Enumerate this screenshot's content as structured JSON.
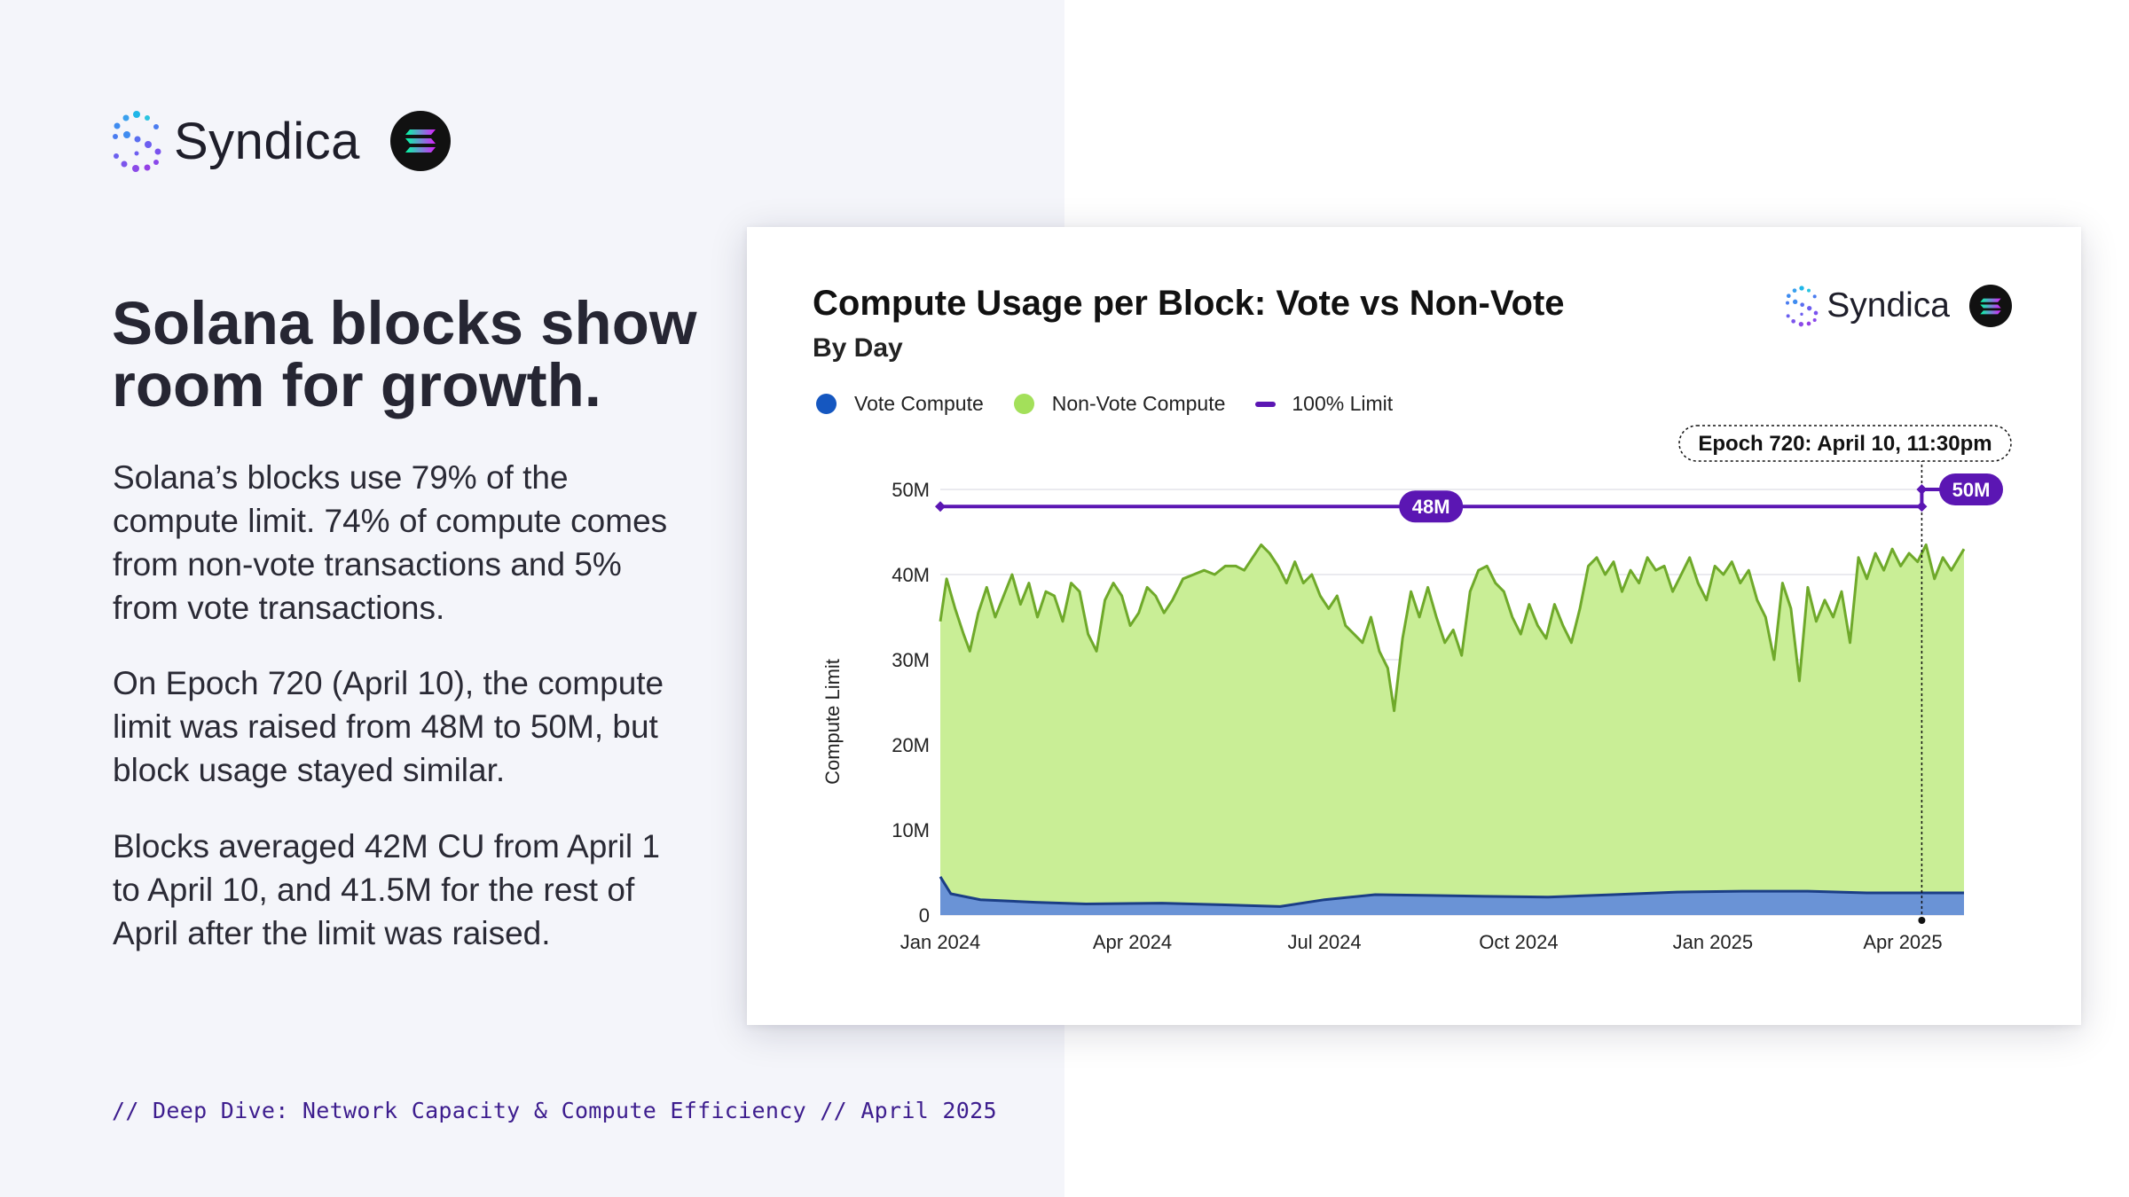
{
  "brand": {
    "name": "Syndica"
  },
  "slide": {
    "headline_line1": "Solana blocks show",
    "headline_line2": "room for growth.",
    "paragraphs": [
      "Solana’s blocks use 79% of the compute limit. 74% of compute comes from non-vote transactions and 5% from vote transactions.",
      "On Epoch 720 (April 10), the compute limit was raised from 48M to 50M, but block usage stayed similar.",
      "Blocks averaged 42M CU from April 1 to April 10, and 41.5M for the rest of April after the limit was raised."
    ],
    "footer": "// Deep Dive: Network Capacity & Compute Efficiency // April 2025"
  },
  "colors": {
    "vote": "#1f5fbf",
    "vote_fill": "#6a93d6",
    "nonvote": "#a3e05a",
    "nonvote_line": "#6fa92a",
    "nonvote_fill": "#c9ee96",
    "limit": "#5b16b3",
    "accent": "#3d1d8e"
  },
  "icons": {
    "brand_logo": "syndica-dots-s-icon",
    "solana_badge": "solana-icon"
  },
  "chart_data": {
    "type": "area",
    "title": "Compute Usage per Block: Vote vs Non-Vote",
    "subtitle": "By Day",
    "ylabel": "Compute Limit",
    "ylim": [
      0,
      50
    ],
    "yticks": [
      "50M",
      "40M",
      "30M",
      "20M",
      "10M",
      "0"
    ],
    "xticks": [
      "Jan 2024",
      "Apr 2024",
      "Jul 2024",
      "Oct 2024",
      "Jan 2025",
      "Apr 2025"
    ],
    "x_start": "2024-01-01",
    "x_end": "2025-04-30",
    "legend": [
      "Vote Compute",
      "Non-Vote Compute",
      "100% Limit"
    ],
    "legend_position": "top-left",
    "grid": true,
    "series": [
      {
        "name": "Non-Vote Compute",
        "points": [
          [
            "2024-01-01",
            34.5
          ],
          [
            "2024-01-04",
            39.5
          ],
          [
            "2024-01-08",
            36
          ],
          [
            "2024-01-12",
            33
          ],
          [
            "2024-01-15",
            31
          ],
          [
            "2024-01-19",
            35.5
          ],
          [
            "2024-01-23",
            38.5
          ],
          [
            "2024-01-27",
            35
          ],
          [
            "2024-01-31",
            37.5
          ],
          [
            "2024-02-04",
            40
          ],
          [
            "2024-02-08",
            36.5
          ],
          [
            "2024-02-12",
            39
          ],
          [
            "2024-02-16",
            35
          ],
          [
            "2024-02-20",
            38
          ],
          [
            "2024-02-24",
            37.5
          ],
          [
            "2024-02-28",
            34.5
          ],
          [
            "2024-03-03",
            39
          ],
          [
            "2024-03-07",
            38
          ],
          [
            "2024-03-11",
            33
          ],
          [
            "2024-03-15",
            31
          ],
          [
            "2024-03-19",
            37
          ],
          [
            "2024-03-23",
            39
          ],
          [
            "2024-03-27",
            37.5
          ],
          [
            "2024-03-31",
            34
          ],
          [
            "2024-04-04",
            35.5
          ],
          [
            "2024-04-08",
            38.5
          ],
          [
            "2024-04-12",
            37.5
          ],
          [
            "2024-04-16",
            35.5
          ],
          [
            "2024-04-20",
            37
          ],
          [
            "2024-04-25",
            39.5
          ],
          [
            "2024-04-30",
            40
          ],
          [
            "2024-05-05",
            40.5
          ],
          [
            "2024-05-10",
            40
          ],
          [
            "2024-05-15",
            41
          ],
          [
            "2024-05-20",
            41
          ],
          [
            "2024-05-24",
            40.5
          ],
          [
            "2024-05-28",
            42
          ],
          [
            "2024-06-01",
            43.5
          ],
          [
            "2024-06-05",
            42.5
          ],
          [
            "2024-06-09",
            41
          ],
          [
            "2024-06-13",
            39
          ],
          [
            "2024-06-17",
            41.5
          ],
          [
            "2024-06-21",
            39
          ],
          [
            "2024-06-25",
            40
          ],
          [
            "2024-06-29",
            37.5
          ],
          [
            "2024-07-03",
            36
          ],
          [
            "2024-07-07",
            37.5
          ],
          [
            "2024-07-11",
            34
          ],
          [
            "2024-07-15",
            33
          ],
          [
            "2024-07-19",
            32
          ],
          [
            "2024-07-23",
            35
          ],
          [
            "2024-07-27",
            31
          ],
          [
            "2024-07-31",
            29
          ],
          [
            "2024-08-03",
            24
          ],
          [
            "2024-08-07",
            32.5
          ],
          [
            "2024-08-11",
            38
          ],
          [
            "2024-08-15",
            35
          ],
          [
            "2024-08-19",
            38.5
          ],
          [
            "2024-08-23",
            35
          ],
          [
            "2024-08-27",
            32
          ],
          [
            "2024-08-31",
            33.5
          ],
          [
            "2024-09-04",
            30.5
          ],
          [
            "2024-09-08",
            38
          ],
          [
            "2024-09-12",
            40.5
          ],
          [
            "2024-09-16",
            41
          ],
          [
            "2024-09-20",
            39
          ],
          [
            "2024-09-24",
            38
          ],
          [
            "2024-09-28",
            35
          ],
          [
            "2024-10-02",
            33
          ],
          [
            "2024-10-06",
            36.5
          ],
          [
            "2024-10-10",
            34
          ],
          [
            "2024-10-14",
            32.5
          ],
          [
            "2024-10-18",
            36.5
          ],
          [
            "2024-10-22",
            34
          ],
          [
            "2024-10-26",
            32
          ],
          [
            "2024-10-30",
            36
          ],
          [
            "2024-11-03",
            41
          ],
          [
            "2024-11-07",
            42
          ],
          [
            "2024-11-11",
            40
          ],
          [
            "2024-11-15",
            41.5
          ],
          [
            "2024-11-19",
            38
          ],
          [
            "2024-11-23",
            40.5
          ],
          [
            "2024-11-27",
            39
          ],
          [
            "2024-12-01",
            42
          ],
          [
            "2024-12-05",
            40.5
          ],
          [
            "2024-12-09",
            41
          ],
          [
            "2024-12-13",
            38
          ],
          [
            "2024-12-17",
            40
          ],
          [
            "2024-12-21",
            42
          ],
          [
            "2024-12-25",
            39
          ],
          [
            "2024-12-29",
            37
          ],
          [
            "2025-01-02",
            41
          ],
          [
            "2025-01-06",
            40
          ],
          [
            "2025-01-10",
            41.5
          ],
          [
            "2025-01-14",
            39
          ],
          [
            "2025-01-18",
            40.5
          ],
          [
            "2025-01-22",
            37
          ],
          [
            "2025-01-26",
            35
          ],
          [
            "2025-01-30",
            30
          ],
          [
            "2025-02-03",
            39
          ],
          [
            "2025-02-07",
            36
          ],
          [
            "2025-02-11",
            27.5
          ],
          [
            "2025-02-15",
            38.5
          ],
          [
            "2025-02-19",
            34.5
          ],
          [
            "2025-02-23",
            37
          ],
          [
            "2025-02-27",
            35
          ],
          [
            "2025-03-03",
            38
          ],
          [
            "2025-03-07",
            32
          ],
          [
            "2025-03-11",
            42
          ],
          [
            "2025-03-15",
            39.5
          ],
          [
            "2025-03-19",
            42.5
          ],
          [
            "2025-03-23",
            40.5
          ],
          [
            "2025-03-27",
            43
          ],
          [
            "2025-03-31",
            41
          ],
          [
            "2025-04-04",
            42.5
          ],
          [
            "2025-04-08",
            41.5
          ],
          [
            "2025-04-12",
            43.5
          ],
          [
            "2025-04-16",
            39.5
          ],
          [
            "2025-04-20",
            42
          ],
          [
            "2025-04-24",
            40.5
          ],
          [
            "2025-04-30",
            43
          ]
        ]
      },
      {
        "name": "Vote Compute",
        "points": [
          [
            "2024-01-01",
            4.5
          ],
          [
            "2024-01-06",
            2.5
          ],
          [
            "2024-01-20",
            1.8
          ],
          [
            "2024-02-15",
            1.5
          ],
          [
            "2024-03-10",
            1.3
          ],
          [
            "2024-04-15",
            1.4
          ],
          [
            "2024-05-15",
            1.2
          ],
          [
            "2024-06-10",
            1.0
          ],
          [
            "2024-07-01",
            1.8
          ],
          [
            "2024-07-25",
            2.4
          ],
          [
            "2024-08-20",
            2.3
          ],
          [
            "2024-09-15",
            2.2
          ],
          [
            "2024-10-15",
            2.1
          ],
          [
            "2024-11-15",
            2.4
          ],
          [
            "2024-12-15",
            2.7
          ],
          [
            "2025-01-15",
            2.8
          ],
          [
            "2025-02-15",
            2.8
          ],
          [
            "2025-03-15",
            2.6
          ],
          [
            "2025-04-30",
            2.6
          ]
        ]
      }
    ],
    "limit_series": {
      "name": "100% Limit",
      "points": [
        [
          "2024-01-01",
          48
        ],
        [
          "2025-04-10",
          48
        ],
        [
          "2025-04-10",
          50
        ],
        [
          "2025-04-30",
          50
        ]
      ],
      "labels": [
        "48M",
        "50M"
      ]
    },
    "annotation": {
      "date": "2025-04-10",
      "text": "Epoch 720: April 10, 11:30pm"
    }
  }
}
